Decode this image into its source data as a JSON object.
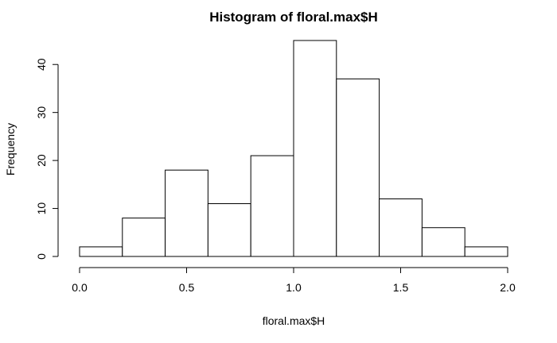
{
  "chart_data": {
    "type": "bar",
    "title": "Histogram of floral.max$H",
    "xlabel": "floral.max$H",
    "ylabel": "Frequency",
    "bin_edges": [
      0.0,
      0.2,
      0.4,
      0.6,
      0.8,
      1.0,
      1.2,
      1.4,
      1.6,
      1.8,
      2.0
    ],
    "values": [
      2,
      8,
      18,
      11,
      21,
      45,
      37,
      12,
      6,
      2
    ],
    "xlim": [
      0.0,
      2.0
    ],
    "ylim": [
      0,
      45
    ],
    "x_ticks": [
      "0.0",
      "0.5",
      "1.0",
      "1.5",
      "2.0"
    ],
    "x_tick_values": [
      0.0,
      0.5,
      1.0,
      1.5,
      2.0
    ],
    "y_ticks": [
      "0",
      "10",
      "20",
      "30",
      "40"
    ],
    "y_tick_values": [
      0,
      10,
      20,
      30,
      40
    ],
    "grid": false,
    "bar_fill": "#ffffff",
    "bar_stroke": "#000000"
  }
}
